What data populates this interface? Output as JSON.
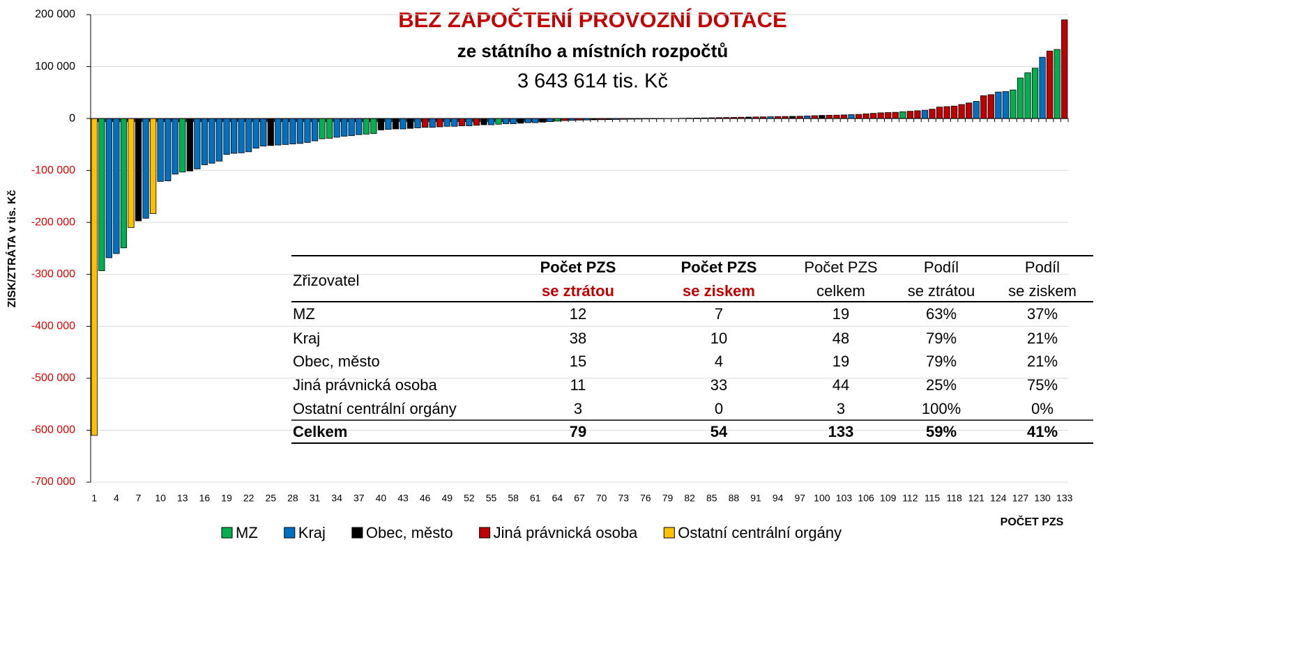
{
  "chart_data": {
    "type": "bar",
    "title": "BEZ ZAPOČTENÍ PROVOZNÍ DOTACE",
    "subtitle": "ze státního a místních rozpočtů",
    "annotation": "3 643 614 tis. Kč",
    "y_label": "ZISK/ZTRÁTA v tis. Kč",
    "x_label": "POČET PZS",
    "ylim": [
      -700000,
      200000
    ],
    "yticks": [
      {
        "value": 200000,
        "label": "200 000"
      },
      {
        "value": 100000,
        "label": "100 000"
      },
      0,
      {
        "value": -100000,
        "label": "-100 000"
      },
      {
        "value": -200000,
        "label": "-200 000"
      },
      {
        "value": -300000,
        "label": "-300 000"
      },
      {
        "value": -400000,
        "label": "-400 000"
      },
      {
        "value": -500000,
        "label": "-500 000"
      },
      {
        "value": -600000,
        "label": "-600 000"
      },
      {
        "value": -700000,
        "label": "-700 000"
      }
    ],
    "negative_tick_color": "#e00000",
    "grid": true,
    "categories": [
      "1",
      null,
      null,
      "4",
      null,
      null,
      "7",
      null,
      null,
      "10",
      null,
      null,
      "13",
      null,
      null,
      "16",
      null,
      null,
      "19",
      null,
      null,
      "22",
      null,
      null,
      "25",
      null,
      null,
      "28",
      null,
      null,
      "31",
      null,
      null,
      "34",
      null,
      null,
      "37",
      null,
      null,
      "40",
      null,
      null,
      "43",
      null,
      null,
      "46",
      null,
      null,
      "49",
      null,
      null,
      "52",
      null,
      null,
      "55",
      null,
      null,
      "58",
      null,
      null,
      "61",
      null,
      null,
      "64",
      null,
      null,
      "67",
      null,
      null,
      "70",
      null,
      null,
      "73",
      null,
      null,
      "76",
      null,
      null,
      "79",
      null,
      null,
      "82",
      null,
      null,
      "85",
      null,
      null,
      "88",
      null,
      null,
      "91",
      null,
      null,
      "94",
      null,
      null,
      "97",
      null,
      null,
      "100",
      null,
      null,
      "103",
      null,
      null,
      "106",
      null,
      null,
      "109",
      null,
      null,
      "112",
      null,
      null,
      "115",
      null,
      null,
      "118",
      null,
      null,
      "121",
      null,
      null,
      "124",
      null,
      null,
      "127",
      null,
      null,
      "130",
      null,
      null,
      "133"
    ],
    "values": [
      -610000,
      -293000,
      -268000,
      -260000,
      -249000,
      -210000,
      -197000,
      -192000,
      -183000,
      -121000,
      -120000,
      -107000,
      -103000,
      -101000,
      -97000,
      -89000,
      -86000,
      -82000,
      -69000,
      -67000,
      -66000,
      -64000,
      -57000,
      -53000,
      -52000,
      -51000,
      -50000,
      -49000,
      -48000,
      -46000,
      -43000,
      -39000,
      -38000,
      -36000,
      -34000,
      -33000,
      -31000,
      -30000,
      -29000,
      -22000,
      -21000,
      -20000,
      -20000,
      -19000,
      -18000,
      -17000,
      -17000,
      -16000,
      -15000,
      -15000,
      -14000,
      -14000,
      -13000,
      -12000,
      -12000,
      -11000,
      -10000,
      -10000,
      -9000,
      -8000,
      -8000,
      -7000,
      -6000,
      -5000,
      -4000,
      -3500,
      -3000,
      -2800,
      -2500,
      -2200,
      -2000,
      -1800,
      -1500,
      -1200,
      -1000,
      -800,
      -600,
      -400,
      -200,
      300,
      500,
      800,
      1000,
      1200,
      1500,
      1800,
      2000,
      2200,
      2500,
      2800,
      3000,
      3200,
      3500,
      3800,
      4000,
      4200,
      4500,
      5000,
      5500,
      6000,
      6200,
      6500,
      7000,
      7500,
      8000,
      9000,
      10000,
      11000,
      11500,
      12000,
      13000,
      14000,
      15000,
      16000,
      18000,
      22000,
      23000,
      24000,
      27000,
      30000,
      33000,
      44000,
      46000,
      51000,
      52000,
      55000,
      78000,
      88000,
      97000,
      118000,
      130000,
      133000,
      190000
    ],
    "colors": [
      "#ffc000",
      "#00b050",
      "#0070c0",
      "#0070c0",
      "#00b050",
      "#ffc000",
      "#000000",
      "#0070c0",
      "#ffc000",
      "#0070c0",
      "#0070c0",
      "#0070c0",
      "#00b050",
      "#000000",
      "#0070c0",
      "#0070c0",
      "#0070c0",
      "#0070c0",
      "#0070c0",
      "#0070c0",
      "#0070c0",
      "#0070c0",
      "#0070c0",
      "#0070c0",
      "#000000",
      "#0070c0",
      "#0070c0",
      "#0070c0",
      "#0070c0",
      "#0070c0",
      "#0070c0",
      "#00b050",
      "#00b050",
      "#0070c0",
      "#0070c0",
      "#0070c0",
      "#0070c0",
      "#00b050",
      "#00b050",
      "#000000",
      "#0070c0",
      "#000000",
      "#0070c0",
      "#000000",
      "#0070c0",
      "#c00000",
      "#0070c0",
      "#c00000",
      "#0070c0",
      "#0070c0",
      "#c00000",
      "#0070c0",
      "#c00000",
      "#000000",
      "#0070c0",
      "#00b050",
      "#0070c0",
      "#0070c0",
      "#000000",
      "#0070c0",
      "#0070c0",
      "#000000",
      "#0070c0",
      "#00b050",
      "#c00000",
      "#0070c0",
      "#c00000",
      "#0070c0",
      "#000000",
      "#c00000",
      "#000000",
      "#0070c0",
      "#c00000",
      "#000000",
      "#c00000",
      "#000000",
      "#c00000",
      "#000000",
      "#0070c0",
      "#c00000",
      "#c00000",
      "#c00000",
      "#00b050",
      "#c00000",
      "#c00000",
      "#c00000",
      "#c00000",
      "#c00000",
      "#c00000",
      "#000000",
      "#c00000",
      "#c00000",
      "#0070c0",
      "#c00000",
      "#c00000",
      "#000000",
      "#c00000",
      "#0070c0",
      "#c00000",
      "#000000",
      "#c00000",
      "#c00000",
      "#c00000",
      "#0070c0",
      "#c00000",
      "#c00000",
      "#c00000",
      "#c00000",
      "#c00000",
      "#c00000",
      "#00b050",
      "#c00000",
      "#c00000",
      "#0070c0",
      "#c00000",
      "#c00000",
      "#c00000",
      "#c00000",
      "#c00000",
      "#c00000",
      "#0070c0",
      "#c00000",
      "#c00000",
      "#0070c0",
      "#0070c0",
      "#00b050",
      "#00b050",
      "#00b050",
      "#00b050",
      "#0070c0",
      "#c00000",
      "#00b050",
      "#c00000"
    ],
    "series": [
      {
        "name": "MZ",
        "color": "#00b050"
      },
      {
        "name": "Kraj",
        "color": "#0070c0"
      },
      {
        "name": "Obec, město",
        "color": "#000000"
      },
      {
        "name": "Jiná právnická osoba",
        "color": "#c00000"
      },
      {
        "name": "Ostatní centrální orgány",
        "color": "#ffc000"
      }
    ],
    "table": {
      "header": [
        "Zřizovatel",
        [
          "Počet PZS",
          "se ztrátou"
        ],
        [
          "Počet PZS",
          "se ziskem"
        ],
        [
          "Počet PZS",
          "celkem"
        ],
        [
          "Podíl",
          "se ztrátou"
        ],
        [
          "Podíl",
          "se ziskem"
        ]
      ],
      "rows": [
        [
          "MZ",
          "12",
          "7",
          "19",
          "63%",
          "37%"
        ],
        [
          "Kraj",
          "38",
          "10",
          "48",
          "79%",
          "21%"
        ],
        [
          "Obec, město",
          "15",
          "4",
          "19",
          "79%",
          "21%"
        ],
        [
          "Jiná právnická osoba",
          "11",
          "33",
          "44",
          "25%",
          "75%"
        ],
        [
          "Ostatní centrální orgány",
          "3",
          "0",
          "3",
          "100%",
          "0%"
        ]
      ],
      "total": [
        "Celkem",
        "79",
        "54",
        "133",
        "59%",
        "41%"
      ]
    }
  }
}
